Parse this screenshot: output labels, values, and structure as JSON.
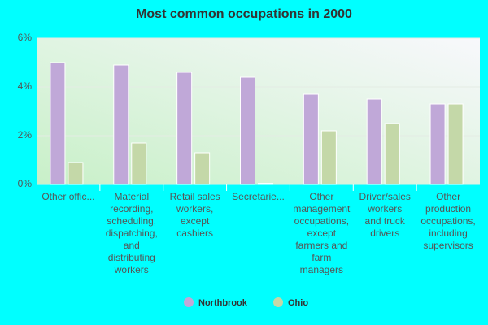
{
  "chart_data": {
    "type": "bar",
    "title": "Most common occupations in 2000",
    "categories": [
      "Other offic...",
      "Material\nrecording,\nscheduling,\ndispatching,\nand\ndistributing\nworkers",
      "Retail sales\nworkers,\nexcept\ncashiers",
      "Secretarie...",
      "Other\nmanagement\noccupations,\nexcept\nfarmers and\nfarm\nmanagers",
      "Driver/sales\nworkers\nand truck\ndrivers",
      "Other\nproduction\noccupations,\nincluding\nsupervisors"
    ],
    "series": [
      {
        "name": "Northbrook",
        "color": "#c0a8d8",
        "values": [
          5.0,
          4.9,
          4.6,
          4.4,
          3.7,
          3.5,
          3.3
        ]
      },
      {
        "name": "Ohio",
        "color": "#c4d8a8",
        "values": [
          0.9,
          1.7,
          1.3,
          0.05,
          2.2,
          2.5,
          3.3
        ]
      }
    ],
    "ylim": [
      0,
      6
    ],
    "yticks": [
      {
        "value": 0,
        "label": "0%"
      },
      {
        "value": 2,
        "label": "2%"
      },
      {
        "value": 4,
        "label": "4%"
      },
      {
        "value": 6,
        "label": "6%"
      }
    ],
    "grid": true
  }
}
